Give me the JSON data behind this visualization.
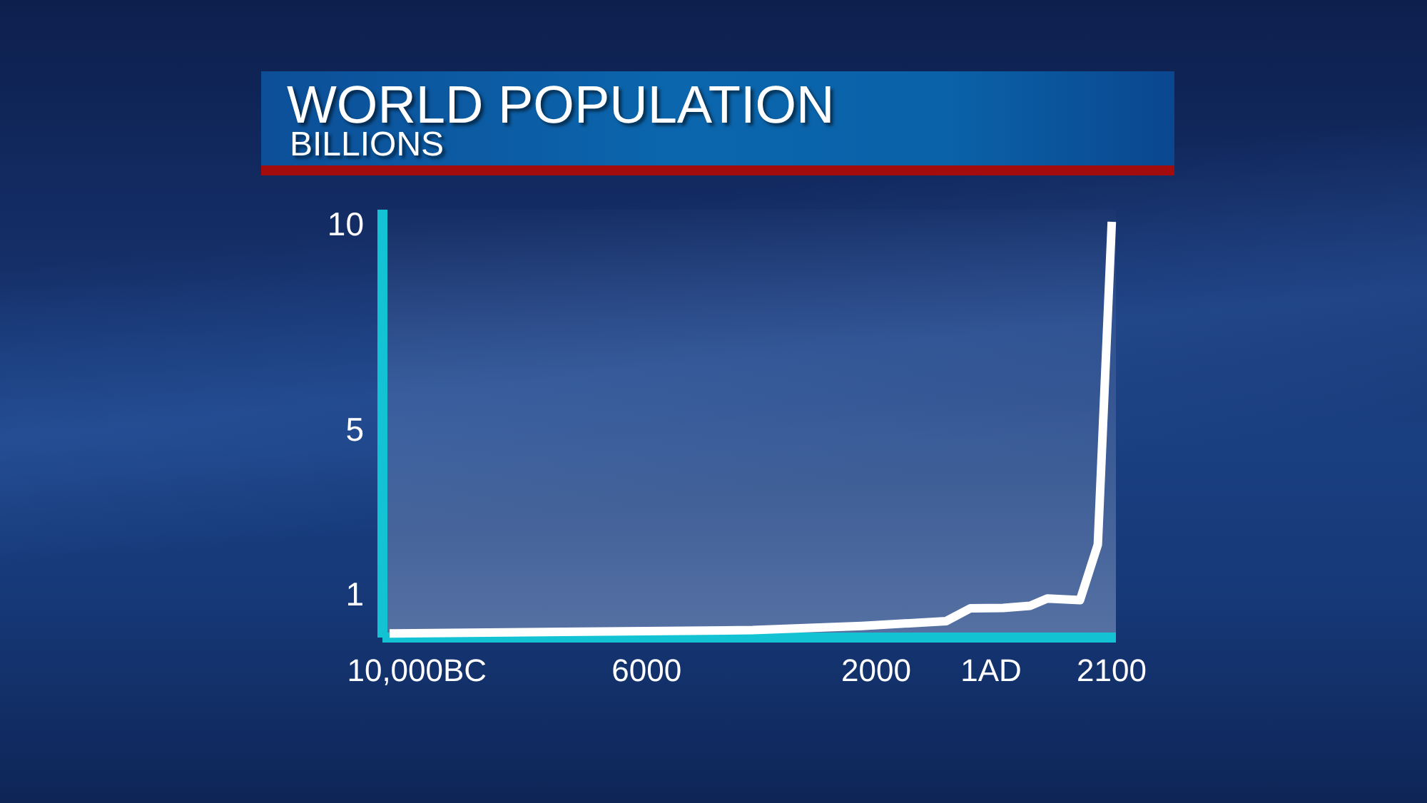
{
  "chart_data": {
    "type": "line",
    "title": "WORLD POPULATION",
    "subtitle": "BILLIONS",
    "x": [
      -10400,
      -4150,
      -2250,
      -780,
      -360,
      210,
      680,
      980,
      1550,
      1860,
      2100
    ],
    "series": [
      {
        "color": "#ffffff",
        "values": [
          0.1,
          0.18,
          0.28,
          0.4,
          0.71,
          0.72,
          0.77,
          0.95,
          0.91,
          2.26,
          10
        ]
      }
    ],
    "xlim": [
      -10600,
      2175
    ],
    "xticks": [
      {
        "value": -10000,
        "label": "10,000BC"
      },
      {
        "value": -6000,
        "label": "6000"
      },
      {
        "value": -2000,
        "label": "2000"
      },
      {
        "value": 1,
        "label": "1AD"
      },
      {
        "value": 2100,
        "label": "2100"
      }
    ],
    "ylim": [
      0,
      10.4
    ],
    "yticks": [
      1,
      5,
      10
    ],
    "marker": "none",
    "line_style": "solid"
  }
}
